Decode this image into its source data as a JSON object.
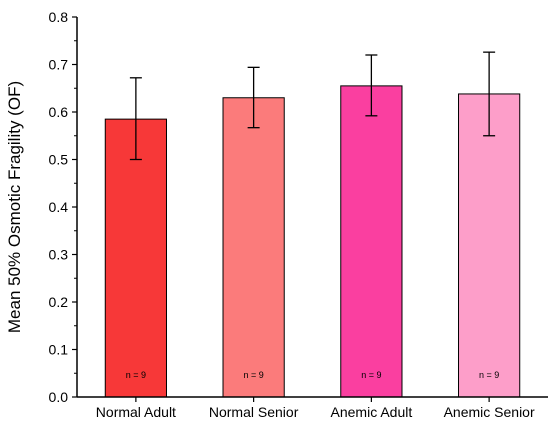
{
  "chart_data": {
    "type": "bar",
    "title": "",
    "xlabel": "",
    "ylabel": "Mean 50% Osmotic Fragility (OF)",
    "ylim": [
      0,
      0.8
    ],
    "yticks": [
      0.0,
      0.1,
      0.2,
      0.3,
      0.4,
      0.5,
      0.6,
      0.7,
      0.8
    ],
    "ytick_labels": [
      "0.0",
      "0.1",
      "0.2",
      "0.3",
      "0.4",
      "0.5",
      "0.6",
      "0.7",
      "0.8"
    ],
    "grid": false,
    "legend": "none",
    "categories": [
      "Normal Adult",
      "Normal Senior",
      "Anemic Adult",
      "Anemic Senior"
    ],
    "values": [
      0.585,
      0.63,
      0.655,
      0.638
    ],
    "error_low": [
      0.5,
      0.567,
      0.592,
      0.55
    ],
    "error_high": [
      0.672,
      0.694,
      0.72,
      0.726
    ],
    "colors": [
      "#f73838",
      "#fb7b7b",
      "#fa3fa0",
      "#fd9ec9"
    ],
    "annotations": [
      "n = 9",
      "n = 9",
      "n = 9",
      "n = 9"
    ]
  }
}
